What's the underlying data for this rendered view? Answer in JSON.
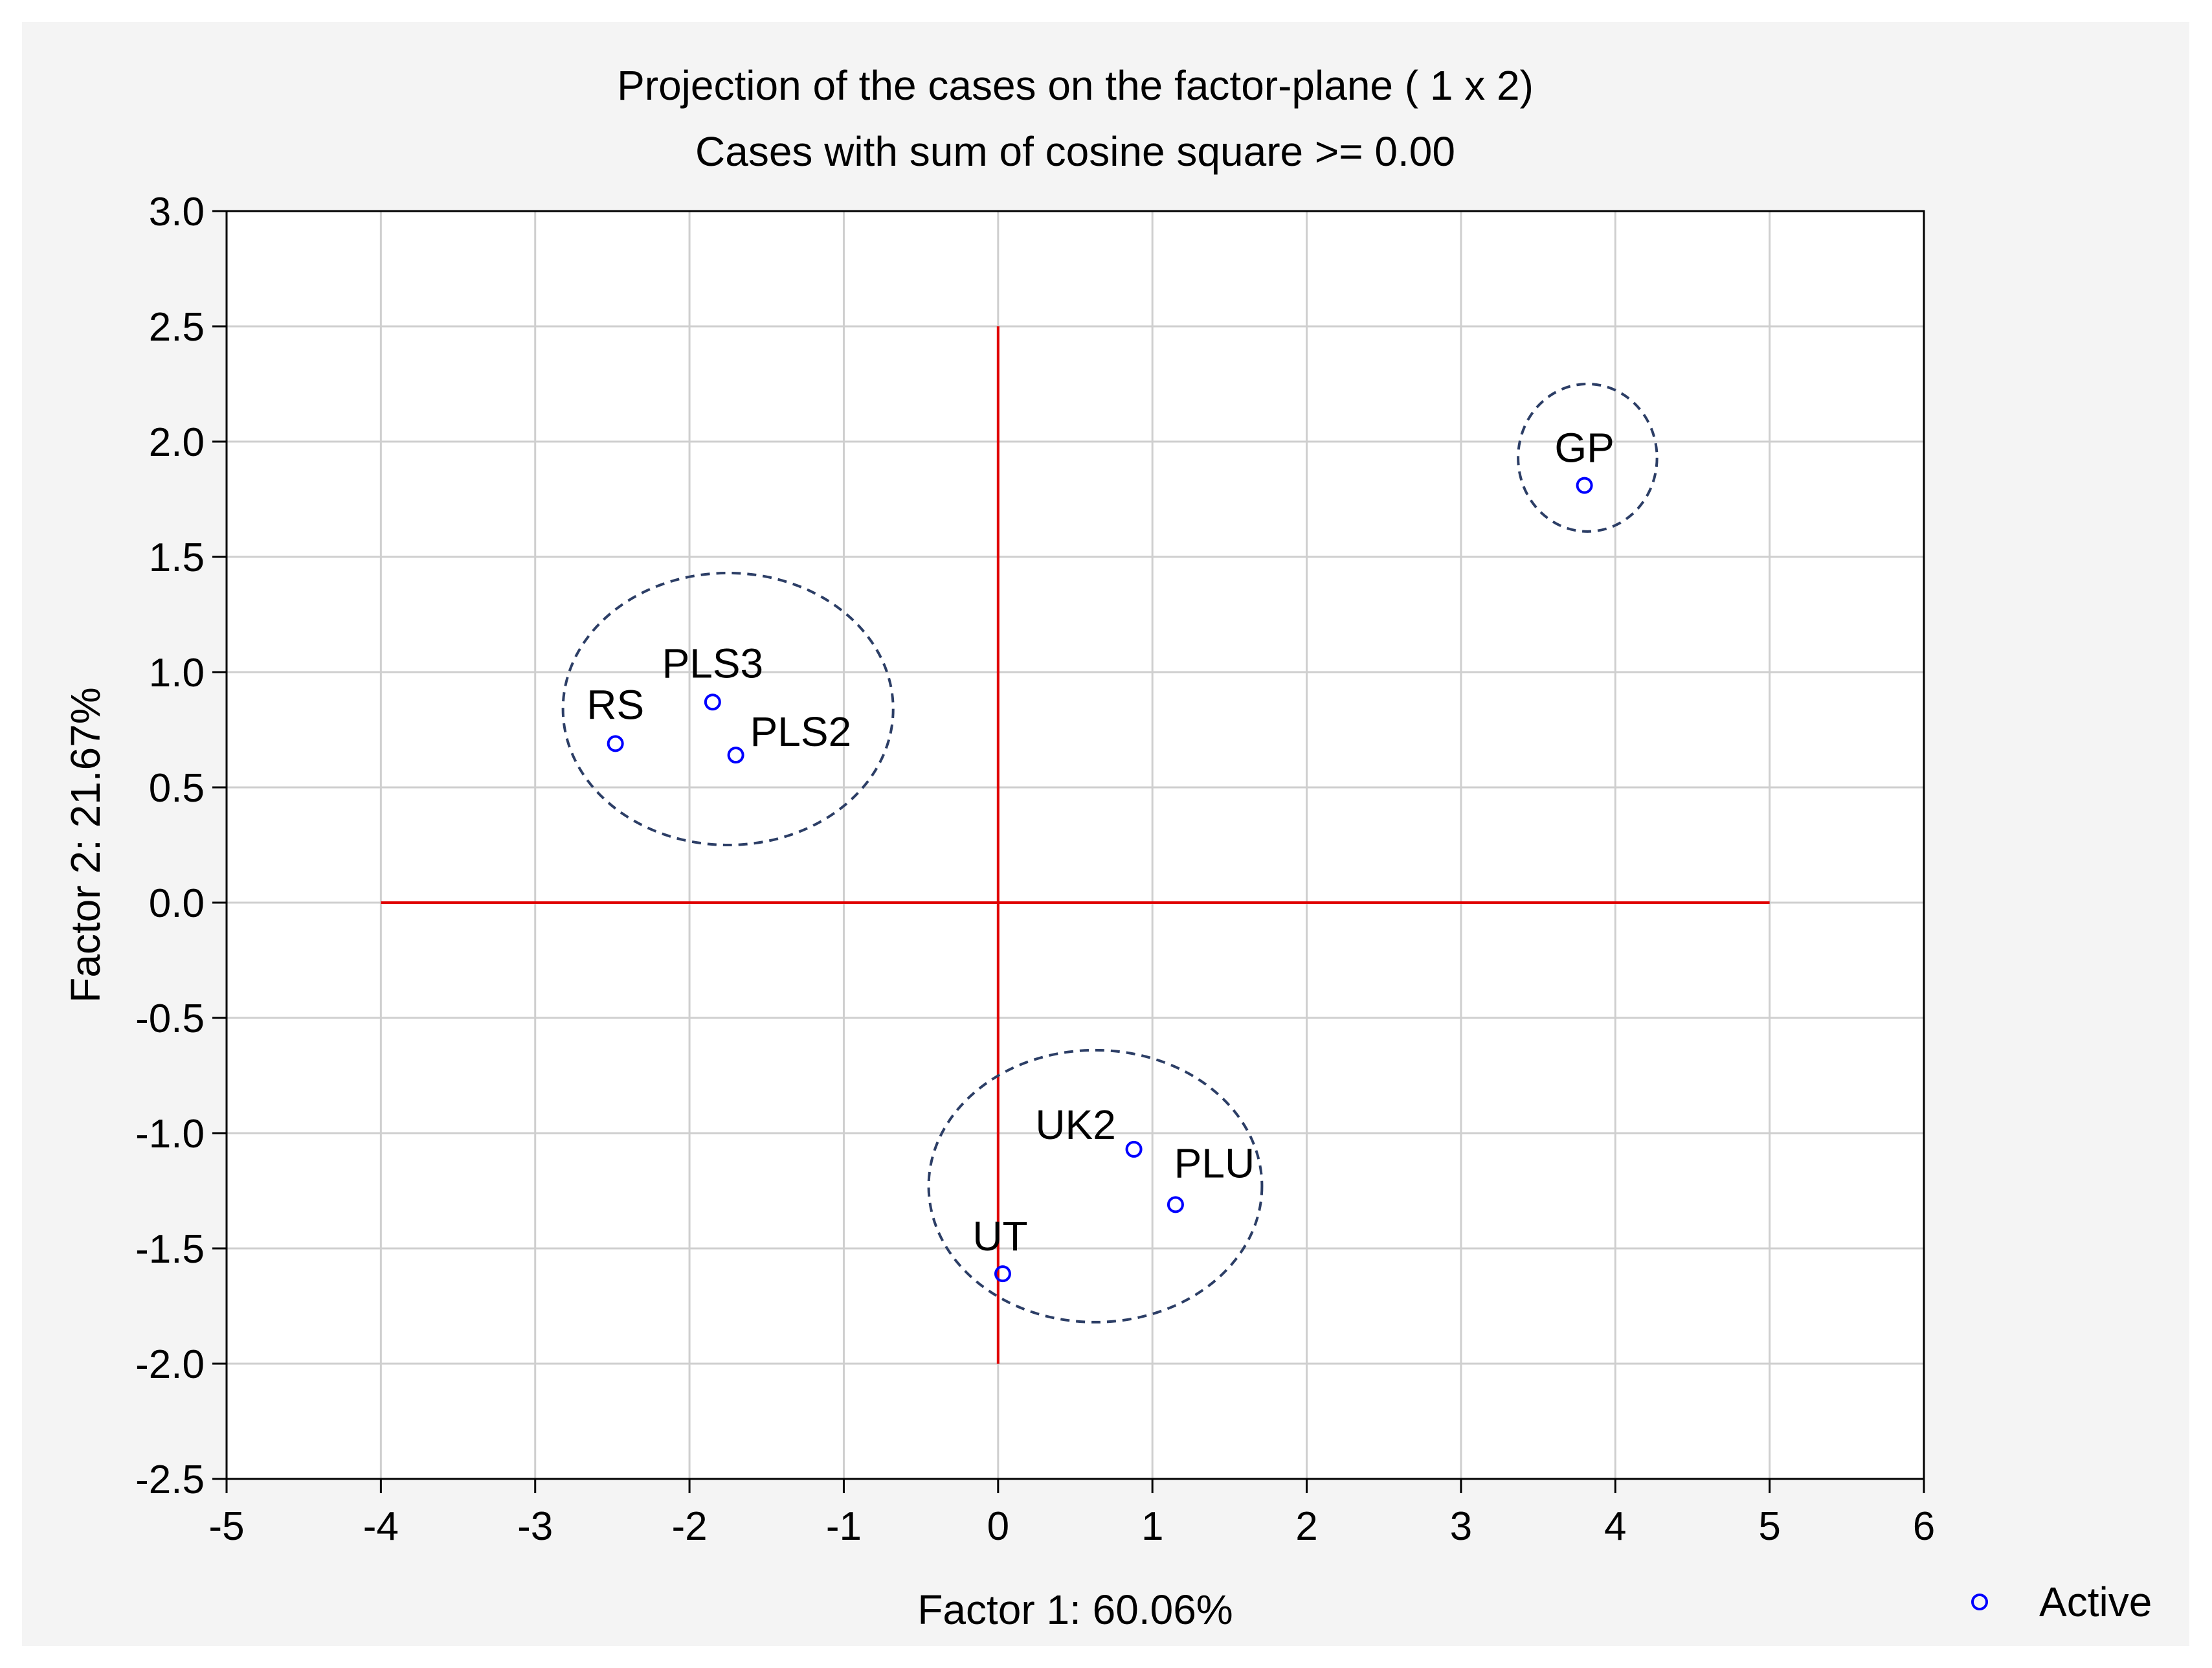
{
  "chart_data": {
    "type": "scatter",
    "title": "Projection of the cases on the factor-plane (  1 x   2)",
    "subtitle": "Cases with sum of cosine square >=  0.00",
    "xlabel": "Factor 1: 60.06%",
    "ylabel": "Factor 2: 21.67%",
    "xlim": [
      -5,
      6
    ],
    "ylim": [
      -2.5,
      3.0
    ],
    "x_ticks": [
      -5,
      -4,
      -3,
      -2,
      -1,
      0,
      1,
      2,
      3,
      4,
      5,
      6
    ],
    "x_tick_labels": [
      "-5",
      "-4",
      "-3",
      "-2",
      "-1",
      "0",
      "1",
      "2",
      "3",
      "4",
      "5",
      "6"
    ],
    "y_ticks": [
      -2.5,
      -2.0,
      -1.5,
      -1.0,
      -0.5,
      0.0,
      0.5,
      1.0,
      1.5,
      2.0,
      2.5,
      3.0
    ],
    "y_tick_labels": [
      "-2.5",
      "-2.0",
      "-1.5",
      "-1.0",
      "-0.5",
      "0.0",
      "0.5",
      "1.0",
      "1.5",
      "2.0",
      "2.5",
      "3.0"
    ],
    "grid": true,
    "legend": {
      "position": "bottom-right",
      "entries": [
        "Active"
      ]
    },
    "series": [
      {
        "name": "Active",
        "color": "#0000ff",
        "points": [
          {
            "label": "GP",
            "x": 3.8,
            "y": 1.81
          },
          {
            "label": "PLS3",
            "x": -1.85,
            "y": 0.87
          },
          {
            "label": "RS",
            "x": -2.48,
            "y": 0.69
          },
          {
            "label": "PLS2",
            "x": -1.7,
            "y": 0.64
          },
          {
            "label": "UK2",
            "x": 0.88,
            "y": -1.07
          },
          {
            "label": "PLU",
            "x": 1.15,
            "y": -1.31
          },
          {
            "label": "UT",
            "x": 0.03,
            "y": -1.61
          }
        ]
      }
    ],
    "reference_lines": [
      {
        "orientation": "horizontal",
        "y": 0.0,
        "x_from": -4,
        "x_to": 5,
        "color": "#e00000"
      },
      {
        "orientation": "vertical",
        "x": 0.0,
        "y_from": -2.0,
        "y_to": 2.5,
        "color": "#e00000"
      }
    ],
    "cluster_ellipses": [
      {
        "members": [
          "GP"
        ],
        "cx": 3.82,
        "cy": 1.93,
        "rx": 0.45,
        "ry": 0.32
      },
      {
        "members": [
          "RS",
          "PLS3",
          "PLS2"
        ],
        "cx": -1.75,
        "cy": 0.84,
        "rx": 1.07,
        "ry": 0.59
      },
      {
        "members": [
          "UK2",
          "PLU",
          "UT"
        ],
        "cx": 0.63,
        "cy": -1.23,
        "rx": 1.08,
        "ry": 0.59
      }
    ]
  }
}
